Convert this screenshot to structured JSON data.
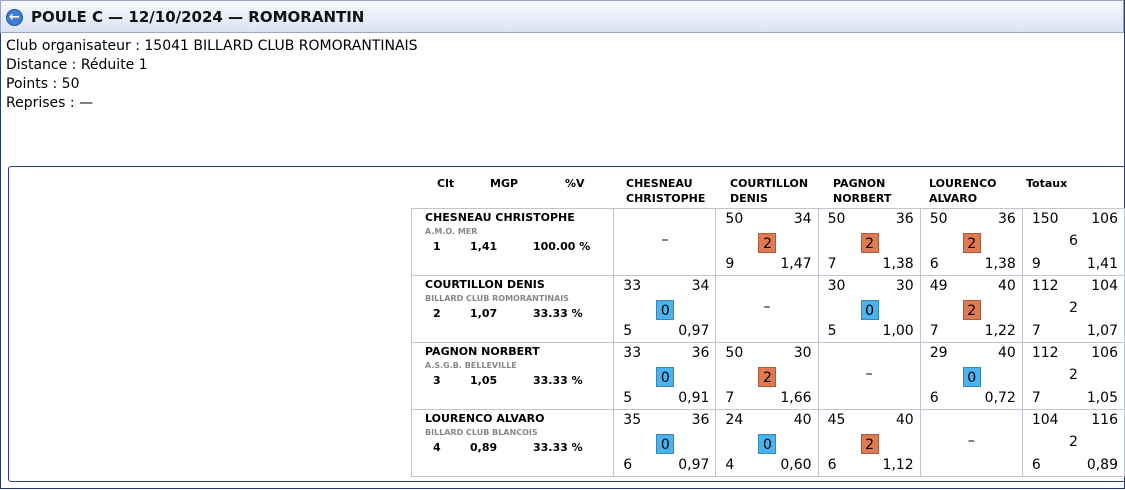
{
  "header": {
    "title": "POULE C — 12/10/2024 — ROMORANTIN"
  },
  "info": {
    "club": "Club organisateur : 15041 BILLARD CLUB ROMORANTINAIS",
    "distance": "Distance : Réduite 1",
    "points": "Points : 50",
    "reprises": "Reprises : —"
  },
  "table": {
    "col_clt": "Clt",
    "col_mgp": "MGP",
    "col_pctv": "%V",
    "col_totaux": "Totaux",
    "players": [
      {
        "header_line1": "CHESNEAU",
        "header_line2": "CHRISTOPHE",
        "name": "CHESNEAU CHRISTOPHE",
        "club": "A.M.O. MER",
        "clt": "1",
        "mgp": "1,41",
        "pct": "100.00 %",
        "results": [
          {
            "self": "–"
          },
          {
            "points": "50",
            "opp_points": "34",
            "match_points": "2",
            "reprises": "9",
            "moyenne": "1,47",
            "badge_color": "#e07a50"
          },
          {
            "points": "50",
            "opp_points": "36",
            "match_points": "2",
            "reprises": "7",
            "moyenne": "1,38",
            "badge_color": "#e07a50"
          },
          {
            "points": "50",
            "opp_points": "36",
            "match_points": "2",
            "reprises": "6",
            "moyenne": "1,38",
            "badge_color": "#e07a50"
          }
        ],
        "totals": {
          "points": "150",
          "opp_points": "106",
          "match_points": "6",
          "reprises": "9",
          "moyenne": "1,41"
        }
      },
      {
        "header_line1": "COURTILLON",
        "header_line2": "DENIS",
        "name": "COURTILLON DENIS",
        "club": "BILLARD CLUB ROMORANTINAIS",
        "clt": "2",
        "mgp": "1,07",
        "pct": "33.33 %",
        "results": [
          {
            "points": "33",
            "opp_points": "34",
            "match_points": "0",
            "reprises": "5",
            "moyenne": "0,97",
            "badge_color": "#4ab3ef"
          },
          {
            "self": "–"
          },
          {
            "points": "30",
            "opp_points": "30",
            "match_points": "0",
            "reprises": "5",
            "moyenne": "1,00",
            "badge_color": "#4ab3ef"
          },
          {
            "points": "49",
            "opp_points": "40",
            "match_points": "2",
            "reprises": "7",
            "moyenne": "1,22",
            "badge_color": "#e07a50"
          }
        ],
        "totals": {
          "points": "112",
          "opp_points": "104",
          "match_points": "2",
          "reprises": "7",
          "moyenne": "1,07"
        }
      },
      {
        "header_line1": "PAGNON",
        "header_line2": "NORBERT",
        "name": "PAGNON NORBERT",
        "club": "A.S.G.B. BELLEVILLE",
        "clt": "3",
        "mgp": "1,05",
        "pct": "33.33 %",
        "results": [
          {
            "points": "33",
            "opp_points": "36",
            "match_points": "0",
            "reprises": "5",
            "moyenne": "0,91",
            "badge_color": "#4ab3ef"
          },
          {
            "points": "50",
            "opp_points": "30",
            "match_points": "2",
            "reprises": "7",
            "moyenne": "1,66",
            "badge_color": "#e07a50"
          },
          {
            "self": "–"
          },
          {
            "points": "29",
            "opp_points": "40",
            "match_points": "0",
            "reprises": "6",
            "moyenne": "0,72",
            "badge_color": "#4ab3ef"
          }
        ],
        "totals": {
          "points": "112",
          "opp_points": "106",
          "match_points": "2",
          "reprises": "7",
          "moyenne": "1,05"
        }
      },
      {
        "header_line1": "LOURENCO",
        "header_line2": "ALVARO",
        "name": "LOURENCO ALVARO",
        "club": "BILLARD CLUB BLANCOIS",
        "clt": "4",
        "mgp": "0,89",
        "pct": "33.33 %",
        "results": [
          {
            "points": "35",
            "opp_points": "36",
            "match_points": "0",
            "reprises": "6",
            "moyenne": "0,97",
            "badge_color": "#4ab3ef"
          },
          {
            "points": "24",
            "opp_points": "40",
            "match_points": "0",
            "reprises": "4",
            "moyenne": "0,60",
            "badge_color": "#4ab3ef"
          },
          {
            "points": "45",
            "opp_points": "40",
            "match_points": "2",
            "reprises": "6",
            "moyenne": "1,12",
            "badge_color": "#e07a50"
          },
          {
            "self": "–"
          }
        ],
        "totals": {
          "points": "104",
          "opp_points": "116",
          "match_points": "2",
          "reprises": "6",
          "moyenne": "0,89"
        }
      }
    ]
  }
}
